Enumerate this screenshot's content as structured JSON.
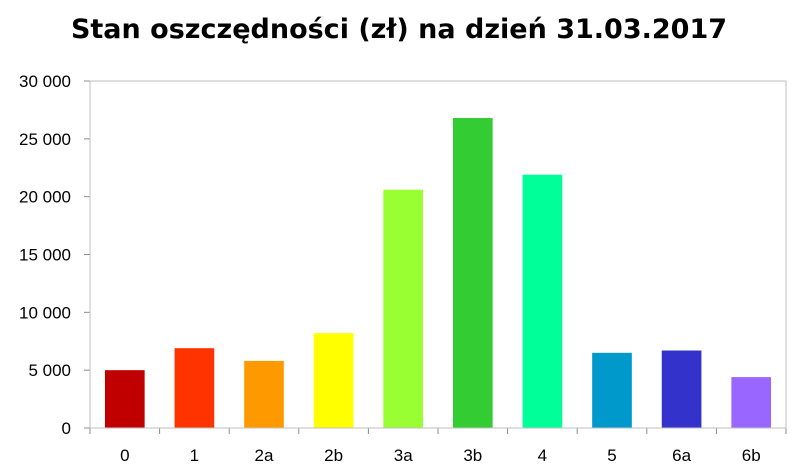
{
  "chart_data": {
    "type": "bar",
    "title": "Stan oszczędności (zł) na dzień 31.03.2017",
    "xlabel": "",
    "ylabel": "",
    "categories": [
      "0",
      "1",
      "2a",
      "2b",
      "3a",
      "3b",
      "4",
      "5",
      "6a",
      "6b"
    ],
    "values": [
      5000,
      6900,
      5800,
      8200,
      20600,
      26800,
      21900,
      6500,
      6700,
      4400
    ],
    "colors": [
      "#c00000",
      "#ff3300",
      "#ff9900",
      "#ffff00",
      "#99ff33",
      "#33cc33",
      "#00ff99",
      "#0099cc",
      "#3333cc",
      "#9966ff"
    ],
    "ylim": [
      0,
      30000
    ],
    "yticks": [
      0,
      5000,
      10000,
      15000,
      20000,
      25000,
      30000
    ],
    "ytick_labels": [
      "0",
      "5 000",
      "10 000",
      "15 000",
      "20 000",
      "25 000",
      "30 000"
    ],
    "grid": false,
    "legend": "none"
  }
}
